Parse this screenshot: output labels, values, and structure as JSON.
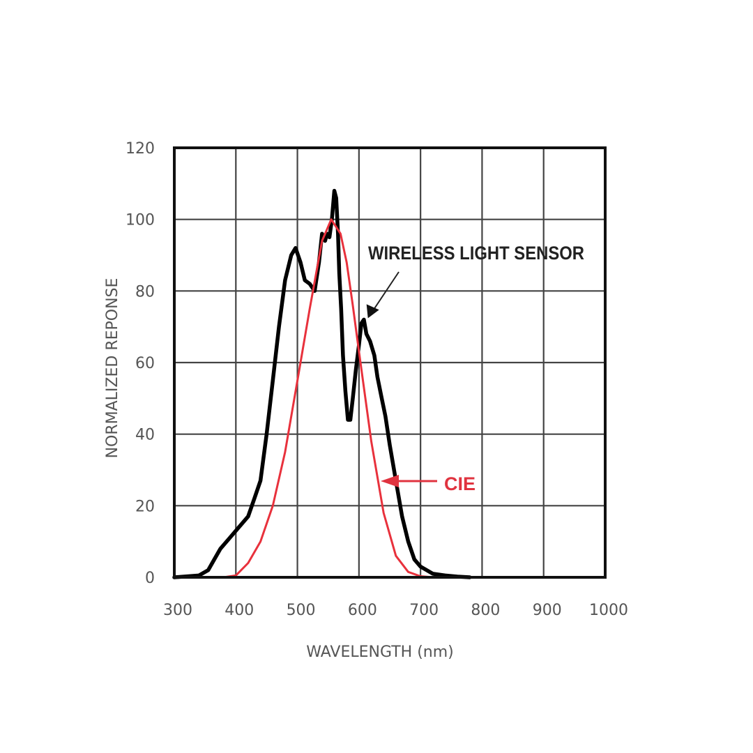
{
  "chart_data": {
    "type": "line",
    "title": "",
    "xlabel": "WAVELENGTH (nm)",
    "ylabel": "NORMALIZED REPONSE",
    "xlim": [
      300,
      1000
    ],
    "ylim": [
      0,
      120
    ],
    "xticks": [
      300,
      400,
      500,
      600,
      700,
      800,
      900,
      1000
    ],
    "yticks": [
      0,
      20,
      40,
      60,
      80,
      100,
      120
    ],
    "grid": true,
    "legend": "none (inline annotations)",
    "annotations": [
      {
        "text": "WIRELESS LIGHT SENSOR",
        "color": "#222222",
        "arrow_to": [
          610,
          72
        ]
      },
      {
        "text": "CIE",
        "color": "#e0333f",
        "arrow_to": [
          627,
          27
        ]
      }
    ],
    "series": [
      {
        "name": "WIRELESS LIGHT SENSOR",
        "color": "#000000",
        "x": [
          300,
          340,
          355,
          365,
          375,
          390,
          405,
          420,
          430,
          440,
          450,
          460,
          470,
          480,
          490,
          497,
          505,
          512,
          520,
          528,
          535,
          540,
          545,
          548,
          552,
          556,
          560,
          563,
          566,
          568,
          571,
          574,
          578,
          582,
          586,
          590,
          595,
          600,
          604,
          608,
          612,
          618,
          625,
          630,
          637,
          643,
          650,
          660,
          670,
          680,
          690,
          700,
          720,
          740,
          760,
          780
        ],
        "y": [
          0,
          0.5,
          2,
          5,
          8,
          11,
          14,
          17,
          22,
          27,
          40,
          55,
          70,
          83,
          90,
          92,
          88,
          83,
          82,
          80,
          88,
          96,
          94,
          96,
          95,
          100,
          108,
          106,
          96,
          85,
          75,
          62,
          52,
          44,
          44,
          50,
          58,
          65,
          71,
          72,
          68,
          66,
          62,
          56,
          50,
          45,
          37,
          27,
          17,
          10,
          5,
          3,
          1,
          0.5,
          0.2,
          0
        ]
      },
      {
        "name": "CIE",
        "color": "#e8313c",
        "x": [
          300,
          380,
          400,
          420,
          440,
          460,
          480,
          500,
          520,
          540,
          555,
          570,
          580,
          590,
          600,
          620,
          640,
          660,
          680,
          700,
          720,
          1000
        ],
        "y": [
          0,
          0,
          0.5,
          4,
          10,
          20,
          35,
          55,
          75,
          94,
          100,
          96,
          88,
          76,
          63,
          38,
          18,
          6,
          1.5,
          0.3,
          0,
          0
        ]
      }
    ]
  }
}
